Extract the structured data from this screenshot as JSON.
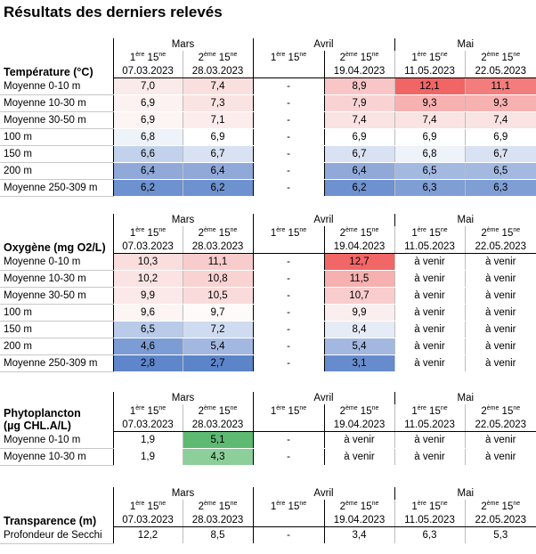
{
  "title": "Résultats des derniers relevés",
  "months": [
    "Mars",
    "Avril",
    "Mai"
  ],
  "freq": [
    {
      "n": "1",
      "sup": "ère",
      "rest": " 15",
      "sup2": "ne"
    },
    {
      "n": "2",
      "sup": "ème",
      "rest": " 15",
      "sup2": "ne"
    },
    {
      "n": "1",
      "sup": "ère",
      "rest": " 15",
      "sup2": "ne"
    },
    {
      "n": "2",
      "sup": "ème",
      "rest": " 15",
      "sup2": "ne"
    },
    {
      "n": "1",
      "sup": "ère",
      "rest": " 15",
      "sup2": "ne"
    },
    {
      "n": "2",
      "sup": "ème",
      "rest": " 15",
      "sup2": "ne"
    }
  ],
  "dates": [
    "07.03.2023",
    "28.03.2023",
    "",
    "19.04.2023",
    "11.05.2023",
    "22.05.2023"
  ],
  "sections": [
    {
      "name": "temperature",
      "label_lines": [
        "Température (°C)"
      ],
      "rows": [
        {
          "label": "Moyenne 0-10 m",
          "values": [
            "7,0",
            "7,4",
            "-",
            "8,9",
            "12,1",
            "11,1"
          ],
          "colors": [
            "#fbeaea",
            "#fadfdf",
            "#ffffff",
            "#f8c6c6",
            "#f16565",
            "#f37c7c"
          ]
        },
        {
          "label": "Moyenne 10-30 m",
          "values": [
            "6,9",
            "7,3",
            "-",
            "7,9",
            "9,3",
            "9,3"
          ],
          "colors": [
            "#fdf2f2",
            "#fae3e3",
            "#ffffff",
            "#f9d3d3",
            "#f7b1b1",
            "#f7b1b1"
          ]
        },
        {
          "label": "Moyenne 30-50 m",
          "values": [
            "6,9",
            "7,1",
            "-",
            "7,4",
            "7,4",
            "7,4"
          ],
          "colors": [
            "#fdf4f4",
            "#fcecec",
            "#ffffff",
            "#fae3e3",
            "#fae3e3",
            "#fae3e3"
          ]
        },
        {
          "label": "100 m",
          "values": [
            "6,8",
            "6,9",
            "-",
            "6,9",
            "6,9",
            "6,9"
          ],
          "colors": [
            "#eef2f9",
            "#ffffff",
            "#ffffff",
            "#ffffff",
            "#ffffff",
            "#ffffff"
          ]
        },
        {
          "label": "150 m",
          "values": [
            "6,6",
            "6,7",
            "-",
            "6,7",
            "6,8",
            "6,7"
          ],
          "colors": [
            "#c3d2ec",
            "#d9e2f2",
            "#ffffff",
            "#d9e2f2",
            "#eef2f9",
            "#d9e2f2"
          ]
        },
        {
          "label": "200 m",
          "values": [
            "6,4",
            "6,4",
            "-",
            "6,4",
            "6,5",
            "6,5"
          ],
          "colors": [
            "#90a9d9",
            "#90a9d9",
            "#ffffff",
            "#90a9d9",
            "#a3b9e0",
            "#a3b9e0"
          ]
        },
        {
          "label": "Moyenne 250-309 m",
          "values": [
            "6,2",
            "6,2",
            "-",
            "6,2",
            "6,3",
            "6,3"
          ],
          "colors": [
            "#6e91cf",
            "#6e91cf",
            "#ffffff",
            "#6e91cf",
            "#7e9ed4",
            "#7e9ed4"
          ]
        }
      ]
    },
    {
      "name": "oxygene",
      "label_lines": [
        "Oxygène (mg O2/L)"
      ],
      "rows": [
        {
          "label": "Moyenne 0-10 m",
          "values": [
            "10,3",
            "11,1",
            "-",
            "12,7",
            "à venir",
            "à venir"
          ],
          "colors": [
            "#fadede",
            "#f8cccc",
            "#ffffff",
            "#f16666",
            "#ffffff",
            "#ffffff"
          ]
        },
        {
          "label": "Moyenne 10-30 m",
          "values": [
            "10,2",
            "10,8",
            "-",
            "11,5",
            "à venir",
            "à venir"
          ],
          "colors": [
            "#fbe3e3",
            "#f9d2d2",
            "#ffffff",
            "#f6b0b0",
            "#ffffff",
            "#ffffff"
          ]
        },
        {
          "label": "Moyenne 30-50 m",
          "values": [
            "9,9",
            "10,5",
            "-",
            "10,7",
            "à venir",
            "à venir"
          ],
          "colors": [
            "#fbe8e8",
            "#fadbdb",
            "#ffffff",
            "#f9cdcd",
            "#ffffff",
            "#ffffff"
          ]
        },
        {
          "label": "100 m",
          "values": [
            "9,6",
            "9,7",
            "-",
            "9,9",
            "à venir",
            "à venir"
          ],
          "colors": [
            "#fdf4f4",
            "#fffafa",
            "#ffffff",
            "#fbeeee",
            "#ffffff",
            "#ffffff"
          ]
        },
        {
          "label": "150 m",
          "values": [
            "6,5",
            "7,2",
            "-",
            "8,4",
            "à venir",
            "à venir"
          ],
          "colors": [
            "#b9cbe9",
            "#cfdbf0",
            "#ffffff",
            "#e6ecf6",
            "#ffffff",
            "#ffffff"
          ]
        },
        {
          "label": "200 m",
          "values": [
            "4,6",
            "5,4",
            "-",
            "5,4",
            "à venir",
            "à venir"
          ],
          "colors": [
            "#7c9cd5",
            "#a2b8e1",
            "#ffffff",
            "#a2b8e1",
            "#ffffff",
            "#ffffff"
          ]
        },
        {
          "label": "Moyenne 250-309 m",
          "values": [
            "2,8",
            "2,7",
            "-",
            "3,1",
            "à venir",
            "à venir"
          ],
          "colors": [
            "#5f86ca",
            "#5c84c9",
            "#ffffff",
            "#678ccd",
            "#ffffff",
            "#ffffff"
          ]
        }
      ]
    },
    {
      "name": "phytoplancton",
      "label_lines": [
        "Phytoplancton",
        "(µg CHL.A/L)"
      ],
      "rows": [
        {
          "label": "Moyenne 0-10 m",
          "values": [
            "1,9",
            "5,1",
            "-",
            "à venir",
            "à venir",
            "à venir"
          ],
          "colors": [
            "#ffffff",
            "#5eb972",
            "#ffffff",
            "#ffffff",
            "#ffffff",
            "#ffffff"
          ]
        },
        {
          "label": "Moyenne 10-30 m",
          "values": [
            "1,9",
            "4,3",
            "-",
            "à venir",
            "à venir",
            "à venir"
          ],
          "colors": [
            "#ffffff",
            "#8ccf9a",
            "#ffffff",
            "#ffffff",
            "#ffffff",
            "#ffffff"
          ]
        }
      ]
    },
    {
      "name": "transparence",
      "label_lines": [
        "Transparence (m)"
      ],
      "rows": [
        {
          "label": "Profondeur de Secchi",
          "values": [
            "12,2",
            "8,5",
            "-",
            "3,4",
            "6,3",
            "5,3"
          ],
          "colors": [
            "#ffffff",
            "#ffffff",
            "#ffffff",
            "#ffffff",
            "#ffffff",
            "#ffffff"
          ]
        }
      ]
    }
  ]
}
